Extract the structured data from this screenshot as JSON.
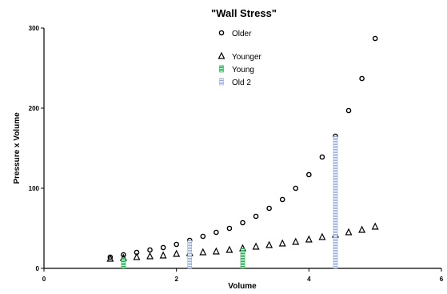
{
  "chart_data": {
    "type": "scatter",
    "title": "\"Wall Stress\"",
    "xlabel": "Volume",
    "ylabel": "Pressure x Volume",
    "xlim": [
      0,
      6
    ],
    "ylim": [
      0,
      300
    ],
    "xticks": [
      "0",
      "2",
      "4",
      "6"
    ],
    "yticks": [
      "0",
      "100",
      "200",
      "300"
    ],
    "grid": false,
    "legend_position": "top-center",
    "series": [
      {
        "name": "Older",
        "marker": "circle",
        "color": "#000000",
        "x": [
          1.0,
          1.2,
          1.4,
          1.6,
          1.8,
          2.0,
          2.2,
          2.4,
          2.6,
          2.8,
          3.0,
          3.2,
          3.4,
          3.6,
          3.8,
          4.0,
          4.2,
          4.4,
          4.6,
          4.8,
          5.0
        ],
        "y": [
          14,
          17,
          20,
          23,
          26,
          30,
          35,
          40,
          45,
          50,
          57,
          65,
          75,
          86,
          100,
          117,
          139,
          165,
          197,
          237,
          287
        ]
      },
      {
        "name": "Younger",
        "marker": "triangle",
        "color": "#000000",
        "x": [
          1.0,
          1.2,
          1.4,
          1.6,
          1.8,
          2.0,
          2.2,
          2.4,
          2.6,
          2.8,
          3.0,
          3.2,
          3.4,
          3.6,
          3.8,
          4.0,
          4.2,
          4.4,
          4.6,
          4.8,
          5.0
        ],
        "y": [
          12,
          13,
          14,
          15,
          16,
          18,
          19,
          20,
          21,
          23,
          25,
          27,
          29,
          31,
          33,
          36,
          39,
          42,
          45,
          48,
          52
        ]
      },
      {
        "name": "Young",
        "marker": "bar",
        "color": "#2e9e4f",
        "x": [
          1.2,
          3.0
        ],
        "y": [
          13,
          25
        ]
      },
      {
        "name": "Old 2",
        "marker": "bar",
        "color": "#9aa8d8",
        "x": [
          2.2,
          4.4
        ],
        "y": [
          35,
          165
        ]
      }
    ]
  }
}
